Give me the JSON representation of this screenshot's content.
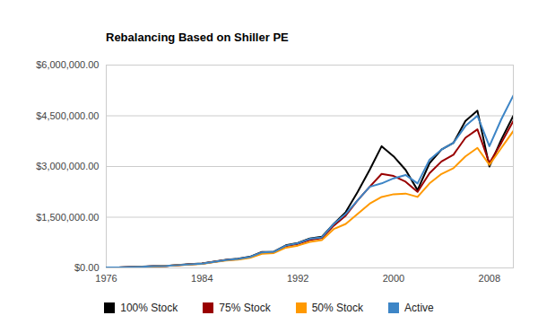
{
  "chart_data": {
    "type": "line",
    "title": "Rebalancing Based on Shiller PE",
    "x": [
      1976,
      1977,
      1978,
      1979,
      1980,
      1981,
      1982,
      1983,
      1984,
      1985,
      1986,
      1987,
      1988,
      1989,
      1990,
      1991,
      1992,
      1993,
      1994,
      1995,
      1996,
      1997,
      1998,
      1999,
      2000,
      2001,
      2002,
      2003,
      2004,
      2005,
      2006,
      2007,
      2008,
      2009,
      2010
    ],
    "xlim": [
      1976,
      2010
    ],
    "xticks": [
      1976,
      1984,
      1992,
      2000,
      2008
    ],
    "ylim": [
      0,
      6000000
    ],
    "yticks": [
      {
        "value": 0,
        "label": "$0.00"
      },
      {
        "value": 1500000,
        "label": "$1,500,000.00"
      },
      {
        "value": 3000000,
        "label": "$3,000,000.00"
      },
      {
        "value": 4500000,
        "label": "$4,500,000.00"
      },
      {
        "value": 6000000,
        "label": "$6,000,000.00"
      }
    ],
    "grid": true,
    "legend": "bottom",
    "series": [
      {
        "name": "100% Stock",
        "color": "#000000",
        "values": [
          10000,
          15000,
          25000,
          38000,
          55000,
          62000,
          85000,
          110000,
          130000,
          185000,
          240000,
          270000,
          330000,
          470000,
          480000,
          670000,
          740000,
          870000,
          920000,
          1300000,
          1650000,
          2250000,
          2900000,
          3600000,
          3300000,
          2900000,
          2300000,
          3100000,
          3500000,
          3700000,
          4350000,
          4650000,
          3000000,
          3800000,
          4500000
        ]
      },
      {
        "name": "75% Stock",
        "color": "#990000",
        "values": [
          10000,
          15000,
          24000,
          36000,
          52000,
          60000,
          82000,
          105000,
          125000,
          178000,
          230000,
          260000,
          315000,
          450000,
          465000,
          640000,
          710000,
          830000,
          880000,
          1250000,
          1550000,
          2000000,
          2400000,
          2780000,
          2720000,
          2550000,
          2250000,
          2800000,
          3150000,
          3350000,
          3850000,
          4100000,
          3100000,
          3700000,
          4350000
        ]
      },
      {
        "name": "50% Stock",
        "color": "#ff9900",
        "values": [
          10000,
          14000,
          23000,
          34000,
          49000,
          57000,
          78000,
          100000,
          120000,
          170000,
          220000,
          248000,
          300000,
          420000,
          440000,
          600000,
          660000,
          770000,
          820000,
          1150000,
          1300000,
          1600000,
          1900000,
          2100000,
          2180000,
          2200000,
          2100000,
          2500000,
          2780000,
          2950000,
          3300000,
          3550000,
          3050000,
          3550000,
          4050000
        ]
      },
      {
        "name": "Active",
        "color": "#3d85c6",
        "values": [
          10000,
          15000,
          24000,
          36000,
          52000,
          60000,
          83000,
          107000,
          128000,
          180000,
          235000,
          265000,
          325000,
          460000,
          475000,
          660000,
          730000,
          860000,
          905000,
          1300000,
          1600000,
          2000000,
          2400000,
          2500000,
          2650000,
          2750000,
          2500000,
          3200000,
          3500000,
          3700000,
          4200000,
          4500000,
          3600000,
          4400000,
          5100000
        ]
      }
    ]
  }
}
